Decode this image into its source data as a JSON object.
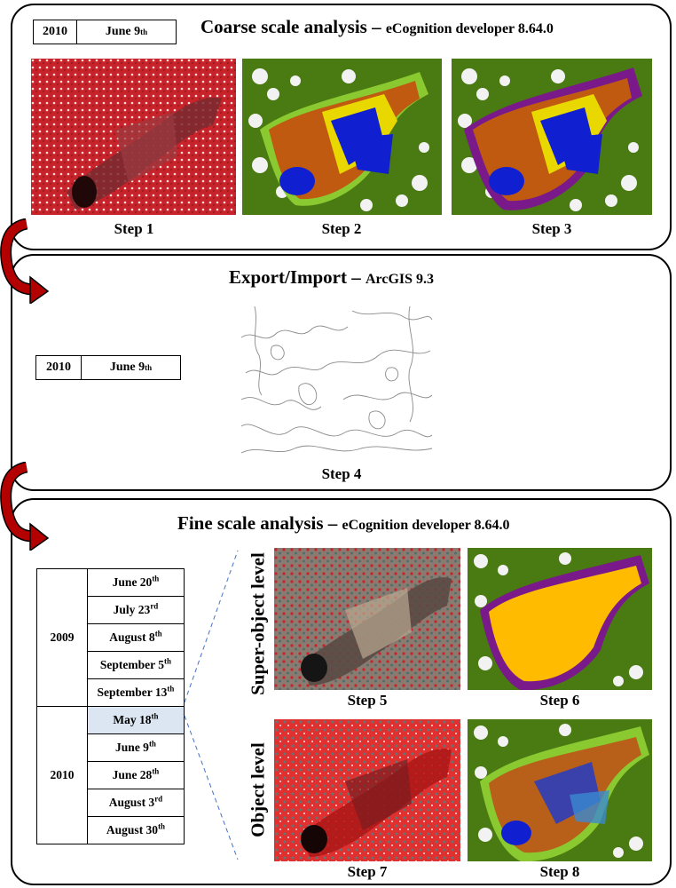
{
  "panel1": {
    "title_main": "Coarse scale analysis – ",
    "title_software": "eCognition developer 8.64.0",
    "date_year": "2010",
    "date_day": "June 9",
    "date_sup": "th",
    "steps": [
      "Step 1",
      "Step 2",
      "Step 3"
    ]
  },
  "panel2": {
    "title_main": "Export/Import – ",
    "title_software": "ArcGIS 9.3",
    "date_year": "2010",
    "date_day": "June 9",
    "date_sup": "th",
    "step": "Step 4"
  },
  "panel3": {
    "title_main": "Fine scale analysis – ",
    "title_software": "eCognition developer 8.64.0",
    "levels": [
      "Super-object level",
      "Object level"
    ],
    "steps": [
      "Step 5",
      "Step 6",
      "Step 7",
      "Step 8"
    ],
    "years": [
      "2009",
      "2010"
    ],
    "dates_2009": [
      {
        "day": "June 20",
        "sup": "th"
      },
      {
        "day": "July 23",
        "sup": "rd"
      },
      {
        "day": "August 8",
        "sup": "th"
      },
      {
        "day": "September 5",
        "sup": "th"
      },
      {
        "day": "September 13",
        "sup": "th"
      }
    ],
    "dates_2010": [
      {
        "day": "May 18",
        "sup": "th"
      },
      {
        "day": "June 9",
        "sup": "th"
      },
      {
        "day": "June 28",
        "sup": "th"
      },
      {
        "day": "August 3",
        "sup": "rd"
      },
      {
        "day": "August 30",
        "sup": "th"
      }
    ]
  },
  "colors": {
    "arrow": "#b30000",
    "forest_red": "#c8232b",
    "class_green": "#4a7a12",
    "class_orange": "#c05a10",
    "class_blue": "#1020d0",
    "class_yellow": "#f0e000",
    "class_purple": "#7a1a8a",
    "class_gold": "#ffbb00",
    "highlight_row": "#dce6f2"
  }
}
